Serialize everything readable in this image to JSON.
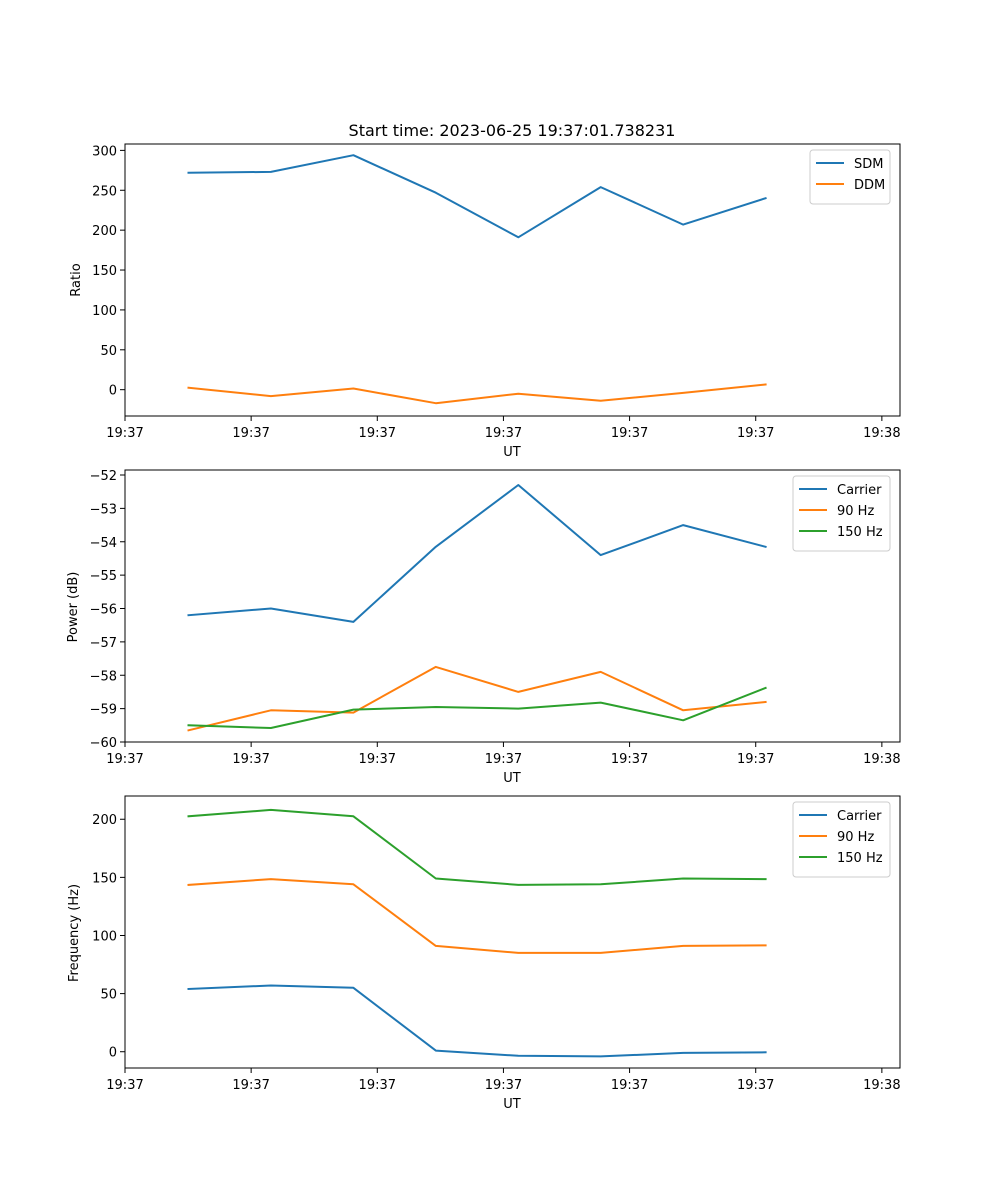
{
  "chart_data": [
    {
      "type": "line",
      "title": "Start time: 2023-06-25 19:37:01.738231",
      "xlabel": "UT",
      "ylabel": "Ratio",
      "xlim": [
        0,
        9.4
      ],
      "ylim": [
        -33,
        308
      ],
      "xtick_positions": [
        0,
        1.53,
        3.06,
        4.59,
        6.12,
        7.65,
        9.18
      ],
      "xtick_labels": [
        "19:37",
        "19:37",
        "19:37",
        "19:37",
        "19:37",
        "19:37",
        "19:38"
      ],
      "yticks": [
        300,
        250,
        200,
        150,
        100,
        50,
        0
      ],
      "ytick_labels": [
        "300",
        "250",
        "200",
        "150",
        "100",
        "50",
        "0"
      ],
      "legend_position": "top-right",
      "x": [
        0.77,
        1.77,
        2.77,
        3.77,
        4.77,
        5.77,
        6.77,
        7.77
      ],
      "series": [
        {
          "name": "SDM",
          "color": "#1f77b4",
          "values": [
            272,
            273,
            294,
            247,
            191,
            254,
            207,
            240
          ]
        },
        {
          "name": "DDM",
          "color": "#ff7f0e",
          "values": [
            2.5,
            -8,
            1.5,
            -17,
            -5,
            -14,
            -4,
            6.5
          ]
        }
      ]
    },
    {
      "type": "line",
      "title": "",
      "xlabel": "UT",
      "ylabel": "Power (dB)",
      "xlim": [
        0,
        9.4
      ],
      "ylim": [
        -60,
        -51.85
      ],
      "xtick_positions": [
        0,
        1.53,
        3.06,
        4.59,
        6.12,
        7.65,
        9.18
      ],
      "xtick_labels": [
        "19:37",
        "19:37",
        "19:37",
        "19:37",
        "19:37",
        "19:37",
        "19:38"
      ],
      "yticks": [
        -52,
        -53,
        -54,
        -55,
        -56,
        -57,
        -58,
        -59,
        -60
      ],
      "ytick_labels": [
        "−52",
        "−53",
        "−54",
        "−55",
        "−56",
        "−57",
        "−58",
        "−59",
        "−60"
      ],
      "legend_position": "top-right",
      "x": [
        0.77,
        1.77,
        2.77,
        3.77,
        4.77,
        5.77,
        6.77,
        7.77
      ],
      "series": [
        {
          "name": "Carrier",
          "color": "#1f77b4",
          "values": [
            -56.2,
            -56.0,
            -56.4,
            -54.15,
            -52.3,
            -54.4,
            -53.5,
            -54.15
          ]
        },
        {
          "name": "90 Hz",
          "color": "#ff7f0e",
          "values": [
            -59.65,
            -59.05,
            -59.12,
            -57.75,
            -58.5,
            -57.9,
            -59.05,
            -58.8
          ]
        },
        {
          "name": "150 Hz",
          "color": "#2ca02c",
          "values": [
            -59.5,
            -59.58,
            -59.03,
            -58.95,
            -59.0,
            -58.82,
            -59.35,
            -58.38
          ]
        }
      ]
    },
    {
      "type": "line",
      "title": "",
      "xlabel": "UT",
      "ylabel": "Frequency (Hz)",
      "xlim": [
        0,
        9.4
      ],
      "ylim": [
        -14,
        220
      ],
      "xtick_positions": [
        0,
        1.53,
        3.06,
        4.59,
        6.12,
        7.65,
        9.18
      ],
      "xtick_labels": [
        "19:37",
        "19:37",
        "19:37",
        "19:37",
        "19:37",
        "19:37",
        "19:38"
      ],
      "yticks": [
        200,
        150,
        100,
        50,
        0
      ],
      "ytick_labels": [
        "200",
        "150",
        "100",
        "50",
        "0"
      ],
      "legend_position": "top-right",
      "x": [
        0.77,
        1.77,
        2.77,
        3.77,
        4.77,
        5.77,
        6.77,
        7.77
      ],
      "series": [
        {
          "name": "Carrier",
          "color": "#1f77b4",
          "values": [
            54,
            57,
            55,
            1,
            -3.5,
            -4,
            -1,
            -0.5
          ]
        },
        {
          "name": "90 Hz",
          "color": "#ff7f0e",
          "values": [
            143.5,
            148.5,
            144,
            91,
            85,
            85,
            91,
            91.5
          ]
        },
        {
          "name": "150 Hz",
          "color": "#2ca02c",
          "values": [
            202.5,
            208,
            202.5,
            149,
            143.5,
            144,
            149,
            148.5
          ]
        }
      ]
    }
  ]
}
